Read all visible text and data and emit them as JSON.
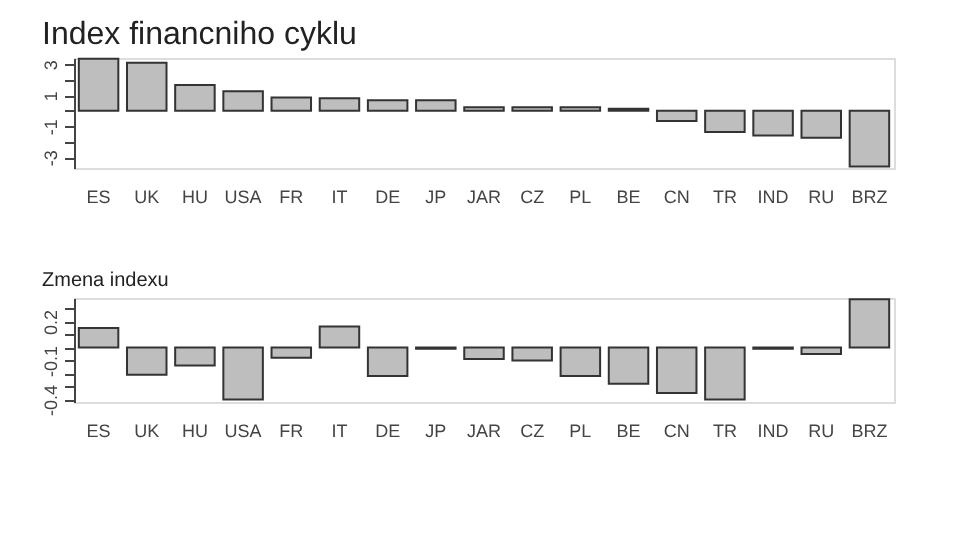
{
  "chart_data": [
    {
      "type": "bar",
      "title": "Index financniho cyklu",
      "color": "#bebebe",
      "categories": [
        "ES",
        "UK",
        "HU",
        "USA",
        "FR",
        "IT",
        "DE",
        "JP",
        "JAR",
        "CZ",
        "PL",
        "BE",
        "CN",
        "TR",
        "IND",
        "RU",
        "BRZ"
      ],
      "values": [
        3.35,
        3.1,
        1.65,
        1.25,
        0.85,
        0.8,
        0.67,
        0.67,
        0.22,
        0.22,
        0.22,
        0.13,
        -0.67,
        -1.38,
        -1.6,
        -1.74,
        -3.6
      ],
      "ylim": [
        -3.7,
        3.4
      ],
      "yticks": [
        -3,
        {
          "value": -2,
          "label": null
        },
        -1,
        {
          "value": 0,
          "label": null
        },
        1,
        {
          "value": 2,
          "label": null
        },
        3
      ]
    },
    {
      "type": "bar",
      "title": "Zmena indexu",
      "color": "#bebebe",
      "categories": [
        "ES",
        "UK",
        "HU",
        "USA",
        "FR",
        "IT",
        "DE",
        "JP",
        "JAR",
        "CZ",
        "PL",
        "BE",
        "CN",
        "TR",
        "IND",
        "RU",
        "BRZ"
      ],
      "values": [
        0.15,
        -0.21,
        -0.14,
        -0.4,
        -0.08,
        0.16,
        -0.22,
        -0.01,
        -0.09,
        -0.1,
        -0.22,
        -0.28,
        -0.35,
        -0.4,
        -0.01,
        -0.05,
        0.37
      ],
      "ylim": [
        -0.42,
        0.38
      ],
      "yticks": [
        -0.4,
        {
          "value": -0.3,
          "label": null
        },
        {
          "value": -0.2,
          "label": null
        },
        -0.1,
        {
          "value": 0,
          "label": null
        },
        {
          "value": 0.1,
          "label": null
        },
        0.2,
        {
          "value": 0.3,
          "label": null
        }
      ]
    }
  ]
}
